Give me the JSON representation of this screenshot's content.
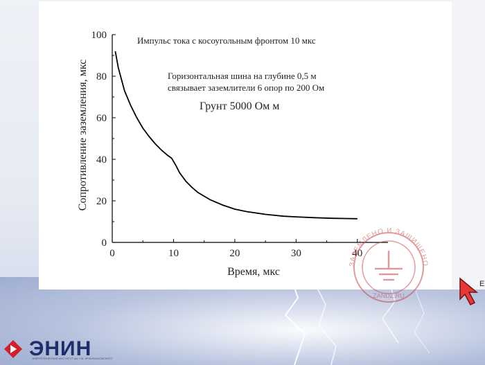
{
  "chart_data": {
    "type": "line",
    "xlabel": "Время,  мкс",
    "ylabel": "Сопротивление заземления,  мкс",
    "xlim": [
      0,
      45
    ],
    "ylim": [
      0,
      100
    ],
    "x_ticks": [
      "0",
      "10",
      "20",
      "30",
      "40"
    ],
    "y_ticks": [
      "0",
      "20",
      "40",
      "60",
      "80",
      "100"
    ],
    "grid": false,
    "annotations": [
      "Импульс тока с косоугольным фронтом 10 мкс",
      "Горизонтальная шина на глубине 0,5 м",
      "связывает заземлители 6 опор по 200 Ом",
      "Грунт 5000 Ом м"
    ],
    "series": [
      {
        "x": [
          0.5,
          1,
          2,
          3,
          4,
          5,
          6,
          7,
          8,
          9,
          9.7,
          10.3,
          11,
          12,
          13,
          14,
          16,
          18,
          20,
          22,
          25,
          28,
          30,
          33,
          36,
          38,
          40
        ],
        "y": [
          92,
          84,
          73,
          66,
          60,
          55,
          51,
          47.5,
          44.5,
          42,
          40.5,
          37.5,
          33.5,
          29.5,
          26.5,
          24,
          20.5,
          18,
          16,
          14.8,
          13.5,
          12.6,
          12.3,
          11.9,
          11.6,
          11.5,
          11.4
        ]
      }
    ]
  },
  "watermark": {
    "text": "ЗАЗЕМЛЕНО И ЗАЩИЩЕНО",
    "domain": "ZANDZ.RU"
  },
  "logo": {
    "name": "ЭНИН",
    "subtitle": "ЭНЕРГЕТИЧЕСКИЙ ИНСТИТУТ им. Г.М. КРЖИЖАНОВСКОГО"
  },
  "side_letter": "E",
  "colors": {
    "line": "#000000",
    "logo_red": "#d3202a",
    "logo_blue": "#1f2d6b",
    "watermark": "#c44a4a"
  }
}
